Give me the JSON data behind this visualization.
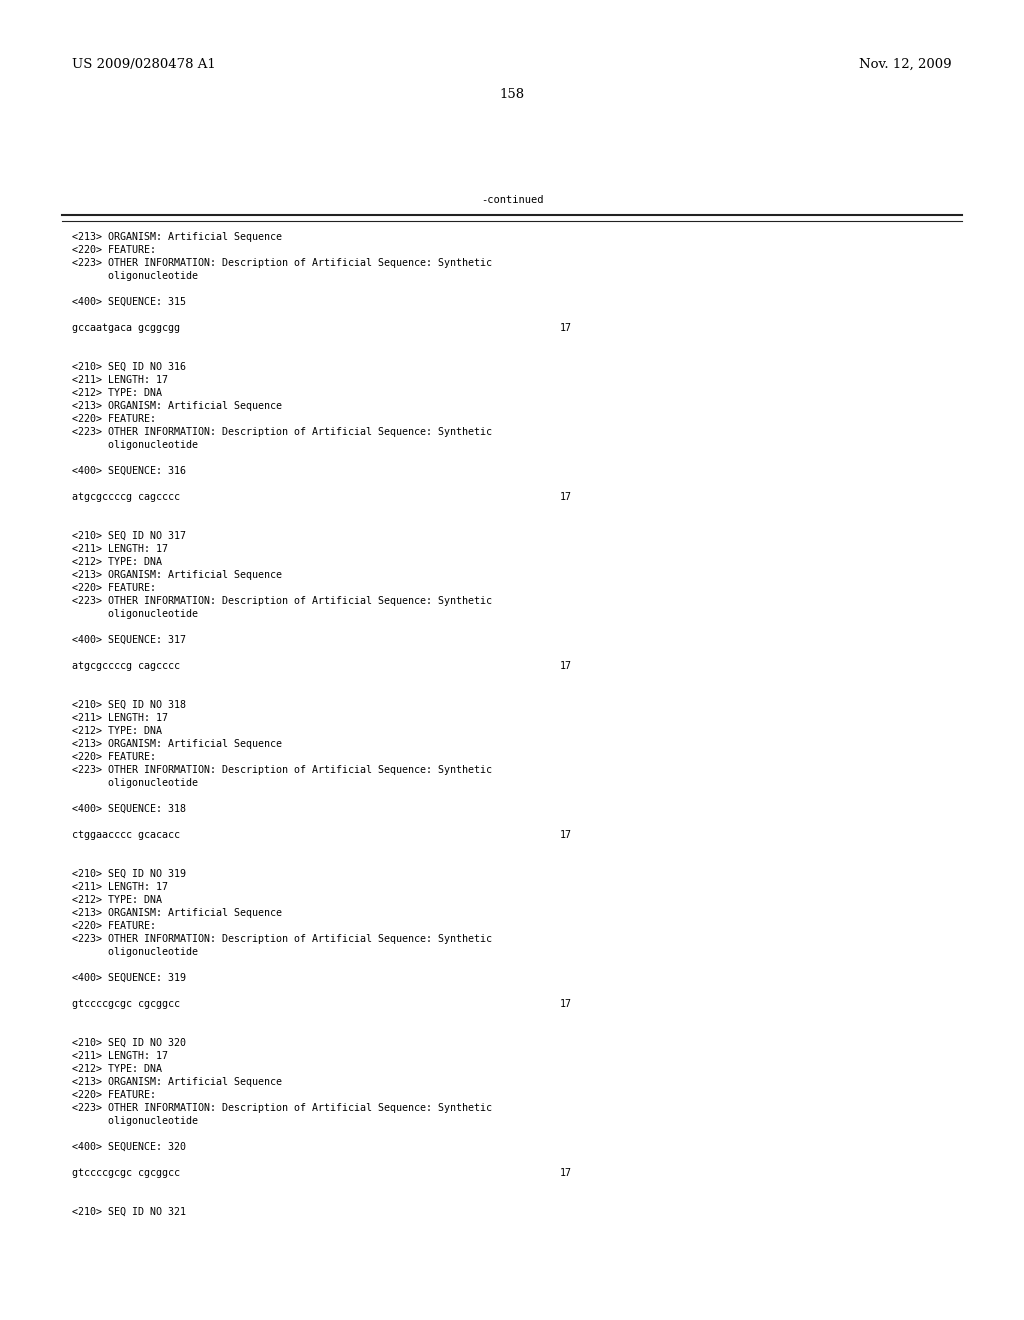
{
  "header_left": "US 2009/0280478 A1",
  "header_right": "Nov. 12, 2009",
  "page_number": "158",
  "continued_label": "-continued",
  "background_color": "#ffffff",
  "text_color": "#000000",
  "font_size_header": 9.5,
  "font_size_body": 7.5,
  "font_size_mono": 7.2,
  "content_lines": [
    "<213> ORGANISM: Artificial Sequence",
    "<220> FEATURE:",
    "<223> OTHER INFORMATION: Description of Artificial Sequence: Synthetic",
    "      oligonucleotide",
    "",
    "<400> SEQUENCE: 315",
    "",
    "gccaatgaca gcggcgg",
    "",
    "",
    "<210> SEQ ID NO 316",
    "<211> LENGTH: 17",
    "<212> TYPE: DNA",
    "<213> ORGANISM: Artificial Sequence",
    "<220> FEATURE:",
    "<223> OTHER INFORMATION: Description of Artificial Sequence: Synthetic",
    "      oligonucleotide",
    "",
    "<400> SEQUENCE: 316",
    "",
    "atgcgccccg cagcccc",
    "",
    "",
    "<210> SEQ ID NO 317",
    "<211> LENGTH: 17",
    "<212> TYPE: DNA",
    "<213> ORGANISM: Artificial Sequence",
    "<220> FEATURE:",
    "<223> OTHER INFORMATION: Description of Artificial Sequence: Synthetic",
    "      oligonucleotide",
    "",
    "<400> SEQUENCE: 317",
    "",
    "atgcgccccg cagcccc",
    "",
    "",
    "<210> SEQ ID NO 318",
    "<211> LENGTH: 17",
    "<212> TYPE: DNA",
    "<213> ORGANISM: Artificial Sequence",
    "<220> FEATURE:",
    "<223> OTHER INFORMATION: Description of Artificial Sequence: Synthetic",
    "      oligonucleotide",
    "",
    "<400> SEQUENCE: 318",
    "",
    "ctggaacccc gcacacc",
    "",
    "",
    "<210> SEQ ID NO 319",
    "<211> LENGTH: 17",
    "<212> TYPE: DNA",
    "<213> ORGANISM: Artificial Sequence",
    "<220> FEATURE:",
    "<223> OTHER INFORMATION: Description of Artificial Sequence: Synthetic",
    "      oligonucleotide",
    "",
    "<400> SEQUENCE: 319",
    "",
    "gtccccgcgc cgcggcc",
    "",
    "",
    "<210> SEQ ID NO 320",
    "<211> LENGTH: 17",
    "<212> TYPE: DNA",
    "<213> ORGANISM: Artificial Sequence",
    "<220> FEATURE:",
    "<223> OTHER INFORMATION: Description of Artificial Sequence: Synthetic",
    "      oligonucleotide",
    "",
    "<400> SEQUENCE: 320",
    "",
    "gtccccgcgc cgcggcc",
    "",
    "",
    "<210> SEQ ID NO 321"
  ],
  "sequence_line_indices": [
    7,
    20,
    33,
    46,
    59,
    72
  ],
  "sequence_numbers": [
    "17",
    "17",
    "17",
    "17",
    "17",
    "17"
  ]
}
